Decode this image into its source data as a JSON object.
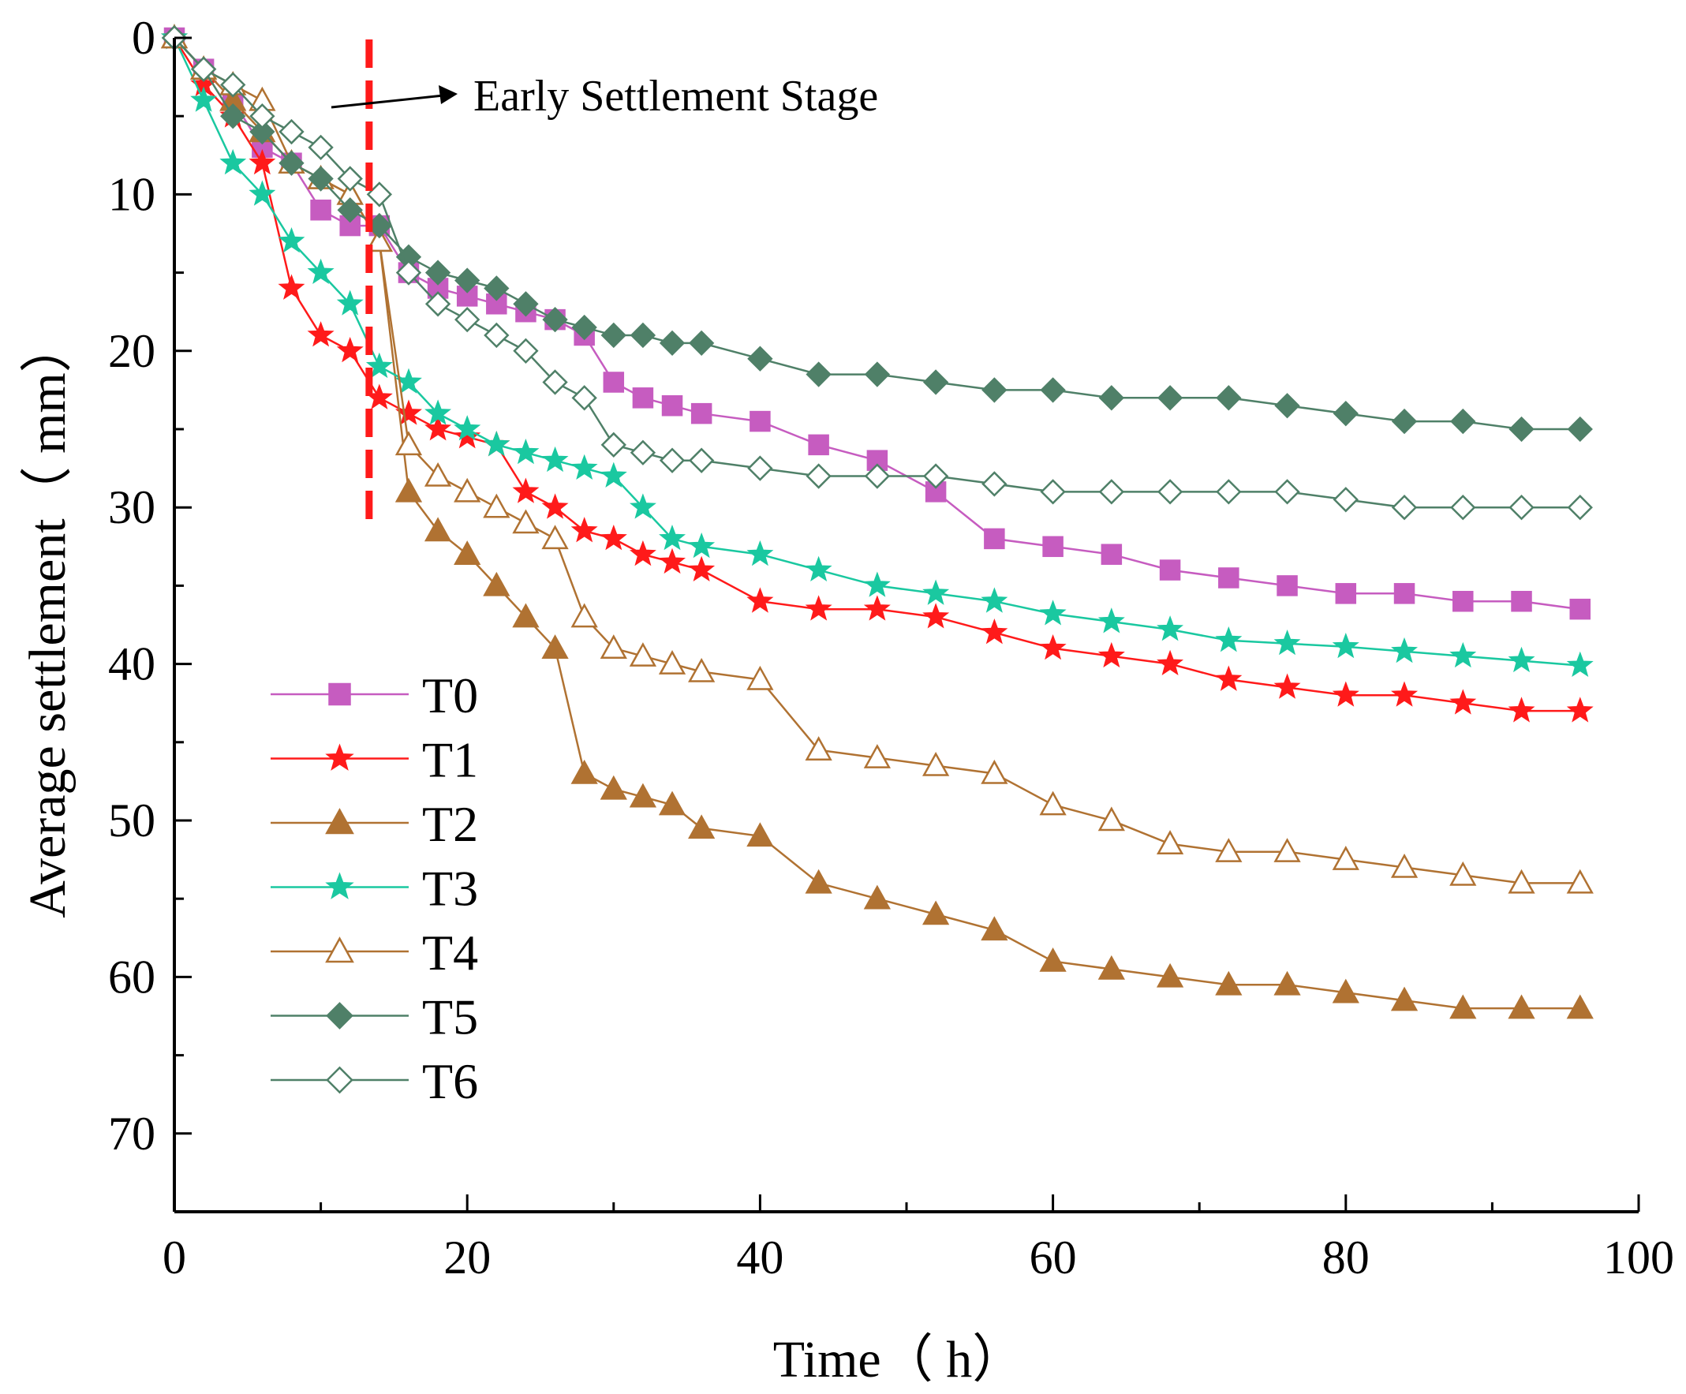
{
  "chart_data": {
    "type": "line",
    "xlabel": "Time（ h）",
    "ylabel": "Average settlement（ mm）",
    "xlim": [
      0,
      100
    ],
    "ylim": [
      0,
      75
    ],
    "y_axis_inverted": true,
    "x_ticks": [
      0,
      20,
      40,
      60,
      80,
      100
    ],
    "y_ticks": [
      0,
      10,
      20,
      30,
      40,
      50,
      60,
      70
    ],
    "grid": false,
    "legend_position": "bottom-left",
    "annotation": {
      "text": "Early Settlement Stage",
      "vline_x": 13.3,
      "vline_color": "#ff1a1a"
    },
    "series": [
      {
        "name": "T0",
        "color": "#c65cc0",
        "marker": "square",
        "filled": true,
        "x": [
          0,
          2,
          4,
          6,
          8,
          10,
          12,
          14,
          16,
          18,
          20,
          22,
          24,
          26,
          28,
          30,
          32,
          34,
          36,
          40,
          44,
          48,
          52,
          56,
          60,
          64,
          68,
          72,
          76,
          80,
          84,
          88,
          92,
          96
        ],
        "y": [
          0,
          2,
          4,
          7,
          8,
          11,
          12,
          12,
          15,
          16,
          16.5,
          17,
          17.5,
          18,
          19,
          22,
          23,
          23.5,
          24,
          24.5,
          26,
          27,
          29,
          32,
          32.5,
          33,
          34,
          34.5,
          35,
          35.5,
          35.5,
          36,
          36,
          36.5
        ]
      },
      {
        "name": "T1",
        "color": "#ff1a1a",
        "marker": "star",
        "filled": true,
        "x": [
          0,
          2,
          4,
          6,
          8,
          10,
          12,
          14,
          16,
          18,
          20,
          22,
          24,
          26,
          28,
          30,
          32,
          34,
          36,
          40,
          44,
          48,
          52,
          56,
          60,
          64,
          68,
          72,
          76,
          80,
          84,
          88,
          92,
          96
        ],
        "y": [
          0,
          3,
          5,
          8,
          16,
          19,
          20,
          23,
          24,
          25,
          25.5,
          26,
          29,
          30,
          31.5,
          32,
          33,
          33.5,
          34,
          36,
          36.5,
          36.5,
          37,
          38,
          39,
          39.5,
          40,
          41,
          41.5,
          42,
          42,
          42.5,
          43,
          43
        ]
      },
      {
        "name": "T2",
        "color": "#b07232",
        "marker": "triangle",
        "filled": true,
        "x": [
          0,
          2,
          4,
          6,
          8,
          10,
          12,
          14,
          16,
          18,
          20,
          22,
          24,
          26,
          28,
          30,
          32,
          34,
          36,
          40,
          44,
          48,
          52,
          56,
          60,
          64,
          68,
          72,
          76,
          80,
          84,
          88,
          92,
          96
        ],
        "y": [
          0,
          2,
          4,
          6,
          8,
          9,
          10,
          13,
          29,
          31.5,
          33,
          35,
          37,
          39,
          47,
          48,
          48.5,
          49,
          50.5,
          51,
          54,
          55,
          56,
          57,
          59,
          59.5,
          60,
          60.5,
          60.5,
          61,
          61.5,
          62,
          62,
          62
        ]
      },
      {
        "name": "T3",
        "color": "#1ac8a0",
        "marker": "star",
        "filled": true,
        "x": [
          0,
          2,
          4,
          6,
          8,
          10,
          12,
          14,
          16,
          18,
          20,
          22,
          24,
          26,
          28,
          30,
          32,
          34,
          36,
          40,
          44,
          48,
          52,
          56,
          60,
          64,
          68,
          72,
          76,
          80,
          84,
          88,
          92,
          96
        ],
        "y": [
          0,
          4,
          8,
          10,
          13,
          15,
          17,
          21,
          22,
          24,
          25,
          26,
          26.5,
          27,
          27.5,
          28,
          30,
          32,
          32.5,
          33,
          34,
          35,
          35.5,
          36,
          36.8,
          37.3,
          37.8,
          38.5,
          38.7,
          38.9,
          39.2,
          39.5,
          39.8,
          40.1
        ]
      },
      {
        "name": "T4",
        "color": "#b07232",
        "marker": "triangle",
        "filled": false,
        "x": [
          0,
          2,
          4,
          6,
          8,
          10,
          12,
          14,
          16,
          18,
          20,
          22,
          24,
          26,
          28,
          30,
          32,
          34,
          36,
          40,
          44,
          48,
          52,
          56,
          60,
          64,
          68,
          72,
          76,
          80,
          84,
          88,
          92,
          96
        ],
        "y": [
          0,
          2,
          3,
          4,
          8,
          9,
          10,
          13,
          26,
          28,
          29,
          30,
          31,
          32,
          37,
          39,
          39.5,
          40,
          40.5,
          41,
          45.5,
          46,
          46.5,
          47,
          49,
          50,
          51.5,
          52,
          52,
          52.5,
          53,
          53.5,
          54,
          54
        ]
      },
      {
        "name": "T5",
        "color": "#4f8068",
        "marker": "diamond",
        "filled": true,
        "x": [
          0,
          2,
          4,
          6,
          8,
          10,
          12,
          14,
          16,
          18,
          20,
          22,
          24,
          26,
          28,
          30,
          32,
          34,
          36,
          40,
          44,
          48,
          52,
          56,
          60,
          64,
          68,
          72,
          76,
          80,
          84,
          88,
          92,
          96
        ],
        "y": [
          0,
          2,
          5,
          6,
          8,
          9,
          11,
          12,
          14,
          15,
          15.5,
          16,
          17,
          18,
          18.5,
          19,
          19,
          19.5,
          19.5,
          20.5,
          21.5,
          21.5,
          22,
          22.5,
          22.5,
          23,
          23,
          23,
          23.5,
          24,
          24.5,
          24.5,
          25,
          25
        ]
      },
      {
        "name": "T6",
        "color": "#4f8068",
        "marker": "diamond",
        "filled": false,
        "x": [
          0,
          2,
          4,
          6,
          8,
          10,
          12,
          14,
          16,
          18,
          20,
          22,
          24,
          26,
          28,
          30,
          32,
          34,
          36,
          40,
          44,
          48,
          52,
          56,
          60,
          64,
          68,
          72,
          76,
          80,
          84,
          88,
          92,
          96
        ],
        "y": [
          0,
          2,
          3,
          5,
          6,
          7,
          9,
          10,
          15,
          17,
          18,
          19,
          20,
          22,
          23,
          26,
          26.5,
          27,
          27,
          27.5,
          28,
          28,
          28,
          28.5,
          29,
          29,
          29,
          29,
          29,
          29.5,
          30,
          30,
          30,
          30
        ]
      }
    ]
  }
}
